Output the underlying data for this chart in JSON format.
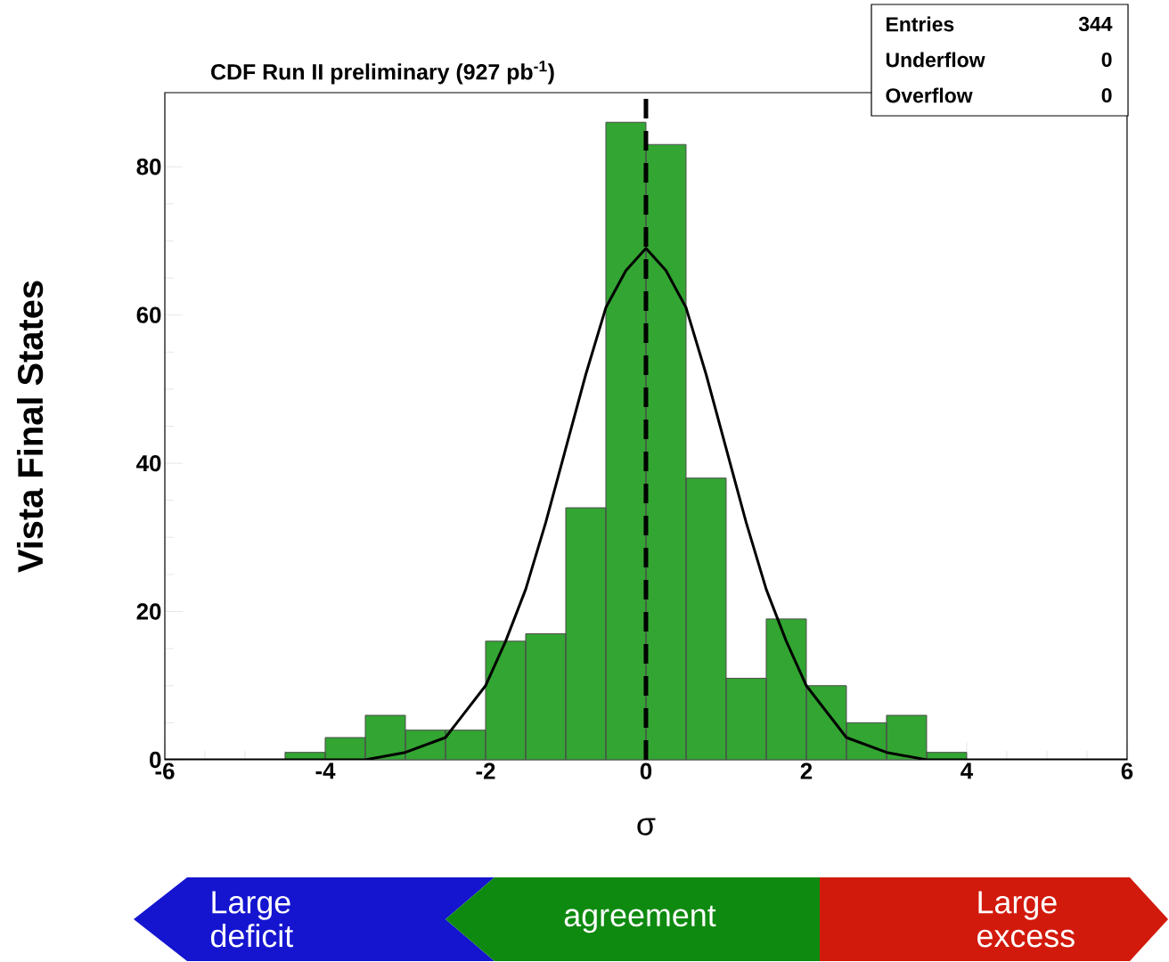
{
  "chart_data": {
    "type": "histogram",
    "title": "CDF Run II preliminary (927 pb$^{-1}$)",
    "xlabel": "σ",
    "ylabel": "Vista Final States",
    "bins": [
      -6,
      -5.5,
      -5,
      -4.5,
      -4,
      -3.5,
      -3,
      -2.5,
      -2,
      -1.5,
      -1,
      -0.5,
      0,
      0.5,
      1,
      1.5,
      2,
      2.5,
      3,
      3.5,
      4,
      4.5,
      5,
      5.5,
      6
    ],
    "values": [
      0,
      0,
      0,
      1,
      3,
      6,
      4,
      4,
      16,
      17,
      34,
      86,
      83,
      38,
      11,
      19,
      10,
      5,
      6,
      1,
      0,
      0,
      0,
      0
    ],
    "color": "#33a532",
    "series": [
      {
        "type": "line",
        "color": "#000000",
        "x": [
          -6,
          -4,
          -3.5,
          -3,
          -2.5,
          -2,
          -1.75,
          -1.5,
          -1.25,
          -1,
          -0.75,
          -0.5,
          -0.25,
          0,
          0.25,
          0.5,
          0.75,
          1,
          1.25,
          1.5,
          1.75,
          2,
          2.5,
          3,
          3.5,
          4,
          6
        ],
        "values": [
          0,
          0,
          0,
          1,
          3,
          10,
          16,
          23,
          32,
          42,
          52,
          61,
          66,
          69,
          66,
          61,
          52,
          42,
          32,
          23,
          16,
          10,
          3,
          1,
          0,
          0,
          0
        ]
      }
    ],
    "xlim": [
      -6,
      6
    ],
    "ylim": [
      0,
      90
    ],
    "xticks": [
      -6,
      -4,
      -2,
      0,
      2,
      4,
      6
    ],
    "yticks": [
      0,
      20,
      40,
      60,
      80
    ],
    "ref_lines": [
      {
        "axis": "x",
        "value": 0,
        "color": "#000000",
        "line_style": "dashed"
      }
    ],
    "annotations": [
      "Entries",
      "344",
      "Underflow",
      "0",
      "Overflow",
      "0",
      "Large deficit",
      "agreement",
      "Large excess"
    ]
  }
}
